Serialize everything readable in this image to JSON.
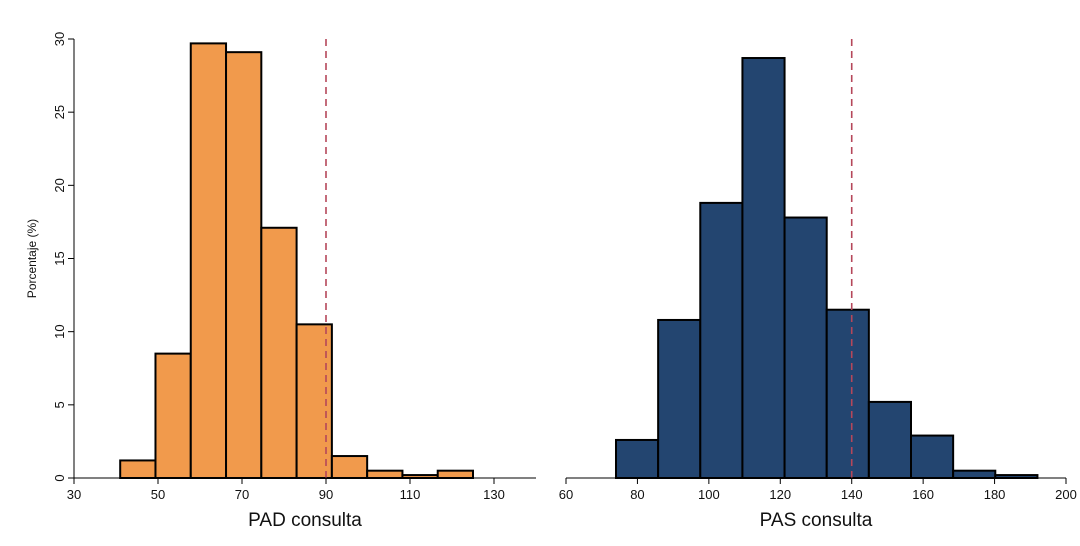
{
  "chart_data": [
    {
      "type": "bar",
      "xlabel": "PAD consulta",
      "ylabel": "Porcentaje (%)",
      "xlim": [
        30,
        140
      ],
      "ylim": [
        0,
        30
      ],
      "xticks": [
        30,
        50,
        70,
        90,
        110,
        130
      ],
      "yticks": [
        0,
        5,
        10,
        15,
        20,
        25,
        30
      ],
      "bins": [
        {
          "start": 41.0,
          "end": 49.4,
          "value": 1.2
        },
        {
          "start": 49.4,
          "end": 57.8,
          "value": 8.5
        },
        {
          "start": 57.8,
          "end": 66.2,
          "value": 29.7
        },
        {
          "start": 66.2,
          "end": 74.6,
          "value": 29.1
        },
        {
          "start": 74.6,
          "end": 83.0,
          "value": 17.1
        },
        {
          "start": 83.0,
          "end": 91.4,
          "value": 10.5
        },
        {
          "start": 91.4,
          "end": 99.8,
          "value": 1.5
        },
        {
          "start": 99.8,
          "end": 108.2,
          "value": 0.5
        },
        {
          "start": 108.2,
          "end": 116.6,
          "value": 0.2
        },
        {
          "start": 116.6,
          "end": 125.0,
          "value": 0.5
        }
      ],
      "reference_line": 90,
      "bar_color": "#F19A4C",
      "line_color": "#B5475A",
      "grid": false
    },
    {
      "type": "bar",
      "xlabel": "PAS consulta",
      "xlim": [
        60,
        200
      ],
      "ylim": [
        0,
        30
      ],
      "xticks": [
        60,
        80,
        100,
        120,
        140,
        160,
        180,
        200
      ],
      "bins": [
        {
          "start": 74.0,
          "end": 85.8,
          "value": 2.6
        },
        {
          "start": 85.8,
          "end": 97.6,
          "value": 10.8
        },
        {
          "start": 97.6,
          "end": 109.4,
          "value": 18.8
        },
        {
          "start": 109.4,
          "end": 121.2,
          "value": 28.7
        },
        {
          "start": 121.2,
          "end": 133.0,
          "value": 17.8
        },
        {
          "start": 133.0,
          "end": 144.8,
          "value": 11.5
        },
        {
          "start": 144.8,
          "end": 156.6,
          "value": 5.2
        },
        {
          "start": 156.6,
          "end": 168.4,
          "value": 2.9
        },
        {
          "start": 168.4,
          "end": 180.2,
          "value": 0.5
        },
        {
          "start": 180.2,
          "end": 192.0,
          "value": 0.2
        }
      ],
      "reference_line": 140,
      "bar_color": "#234570",
      "line_color": "#B5475A",
      "grid": false
    }
  ]
}
